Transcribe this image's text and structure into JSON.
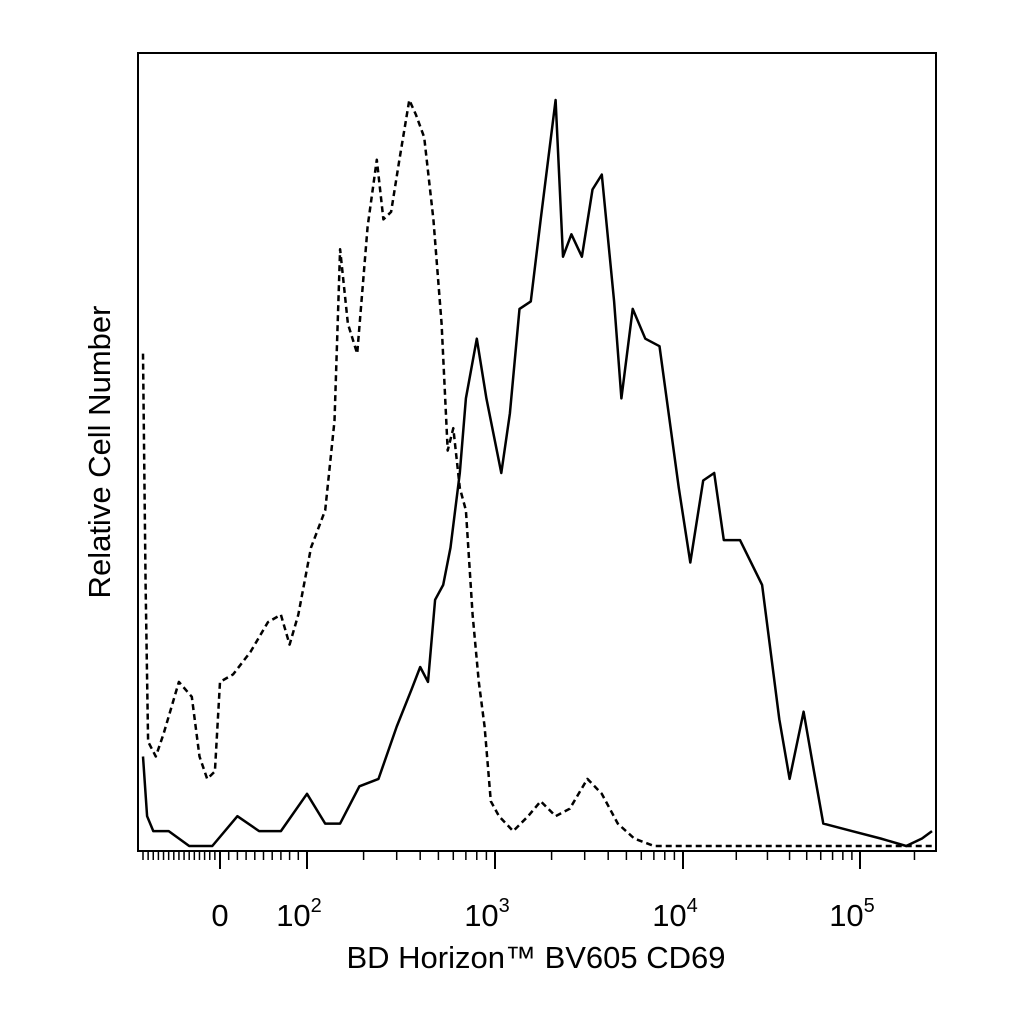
{
  "chart_data": {
    "type": "line",
    "title": "",
    "xlabel": "BD Horizon™ BV605 CD69",
    "ylabel": "Relative Cell Number",
    "x_scale": "biexponential (log above ~10^2)",
    "xlim": [
      -150,
      250000
    ],
    "ylim": [
      0,
      1
    ],
    "grid": false,
    "legend": "none",
    "x_tick_labels": [
      {
        "base": "0",
        "exp": ""
      },
      {
        "base": "10",
        "exp": "2"
      },
      {
        "base": "10",
        "exp": "3"
      },
      {
        "base": "10",
        "exp": "4"
      },
      {
        "base": "10",
        "exp": "5"
      }
    ],
    "series": [
      {
        "style": "dashed",
        "color": "#000000",
        "points": [
          [
            -150,
            0.66
          ],
          [
            -145,
            0.35
          ],
          [
            -140,
            0.14
          ],
          [
            -125,
            0.12
          ],
          [
            -110,
            0.15
          ],
          [
            -80,
            0.22
          ],
          [
            -55,
            0.2
          ],
          [
            -40,
            0.12
          ],
          [
            -25,
            0.09
          ],
          [
            -10,
            0.1
          ],
          [
            0,
            0.22
          ],
          [
            15,
            0.23
          ],
          [
            35,
            0.26
          ],
          [
            55,
            0.3
          ],
          [
            70,
            0.31
          ],
          [
            80,
            0.27
          ],
          [
            90,
            0.31
          ],
          [
            105,
            0.4
          ],
          [
            125,
            0.45
          ],
          [
            140,
            0.57
          ],
          [
            150,
            0.8
          ],
          [
            165,
            0.7
          ],
          [
            185,
            0.66
          ],
          [
            210,
            0.83
          ],
          [
            235,
            0.92
          ],
          [
            255,
            0.84
          ],
          [
            280,
            0.85
          ],
          [
            310,
            0.92
          ],
          [
            350,
            1.0
          ],
          [
            380,
            0.98
          ],
          [
            420,
            0.95
          ],
          [
            470,
            0.84
          ],
          [
            520,
            0.7
          ],
          [
            560,
            0.53
          ],
          [
            600,
            0.56
          ],
          [
            650,
            0.48
          ],
          [
            700,
            0.45
          ],
          [
            760,
            0.31
          ],
          [
            820,
            0.22
          ],
          [
            880,
            0.16
          ],
          [
            950,
            0.06
          ],
          [
            1050,
            0.04
          ],
          [
            1250,
            0.02
          ],
          [
            1500,
            0.04
          ],
          [
            1750,
            0.06
          ],
          [
            2100,
            0.04
          ],
          [
            2500,
            0.05
          ],
          [
            3100,
            0.09
          ],
          [
            3700,
            0.07
          ],
          [
            4500,
            0.03
          ],
          [
            5500,
            0.01
          ],
          [
            7000,
            0.0
          ],
          [
            15000,
            0.0
          ],
          [
            250000,
            0.0
          ]
        ]
      },
      {
        "style": "solid",
        "color": "#000000",
        "points": [
          [
            -150,
            0.12
          ],
          [
            -142,
            0.04
          ],
          [
            -130,
            0.02
          ],
          [
            -100,
            0.02
          ],
          [
            -60,
            0.0
          ],
          [
            -15,
            0.0
          ],
          [
            20,
            0.04
          ],
          [
            45,
            0.02
          ],
          [
            70,
            0.02
          ],
          [
            100,
            0.07
          ],
          [
            125,
            0.03
          ],
          [
            150,
            0.03
          ],
          [
            190,
            0.08
          ],
          [
            240,
            0.09
          ],
          [
            300,
            0.16
          ],
          [
            360,
            0.21
          ],
          [
            400,
            0.24
          ],
          [
            440,
            0.22
          ],
          [
            480,
            0.33
          ],
          [
            530,
            0.35
          ],
          [
            580,
            0.4
          ],
          [
            650,
            0.5
          ],
          [
            700,
            0.6
          ],
          [
            800,
            0.68
          ],
          [
            900,
            0.6
          ],
          [
            1080,
            0.5
          ],
          [
            1200,
            0.58
          ],
          [
            1350,
            0.72
          ],
          [
            1550,
            0.73
          ],
          [
            1750,
            0.84
          ],
          [
            2100,
            1.0
          ],
          [
            2300,
            0.79
          ],
          [
            2550,
            0.82
          ],
          [
            2900,
            0.79
          ],
          [
            3300,
            0.88
          ],
          [
            3700,
            0.9
          ],
          [
            4300,
            0.73
          ],
          [
            4700,
            0.6
          ],
          [
            5400,
            0.72
          ],
          [
            6300,
            0.68
          ],
          [
            7500,
            0.67
          ],
          [
            9500,
            0.48
          ],
          [
            11000,
            0.38
          ],
          [
            13000,
            0.49
          ],
          [
            15000,
            0.5
          ],
          [
            17000,
            0.41
          ],
          [
            21000,
            0.41
          ],
          [
            28000,
            0.35
          ],
          [
            35000,
            0.17
          ],
          [
            40000,
            0.09
          ],
          [
            48000,
            0.18
          ],
          [
            55000,
            0.1
          ],
          [
            62000,
            0.03
          ],
          [
            90000,
            0.02
          ],
          [
            130000,
            0.01
          ],
          [
            180000,
            0.0
          ],
          [
            220000,
            0.01
          ],
          [
            250000,
            0.02
          ]
        ]
      }
    ]
  }
}
